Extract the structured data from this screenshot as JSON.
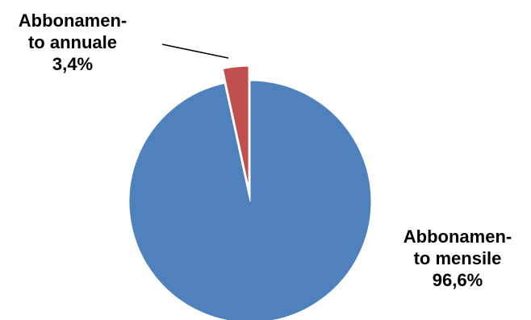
{
  "chart_data": {
    "type": "pie",
    "slices": [
      {
        "label_lines": [
          "Abbonamen-",
          "to annuale",
          "3,4%"
        ],
        "value": 3.4,
        "value_text": "3,4%",
        "color": "#c0504d",
        "exploded": true
      },
      {
        "label_lines": [
          "Abbonamen-",
          "to mensile",
          "96,6%"
        ],
        "value": 96.6,
        "value_text": "96,6%",
        "color": "#4f81bd",
        "exploded": false
      }
    ]
  }
}
